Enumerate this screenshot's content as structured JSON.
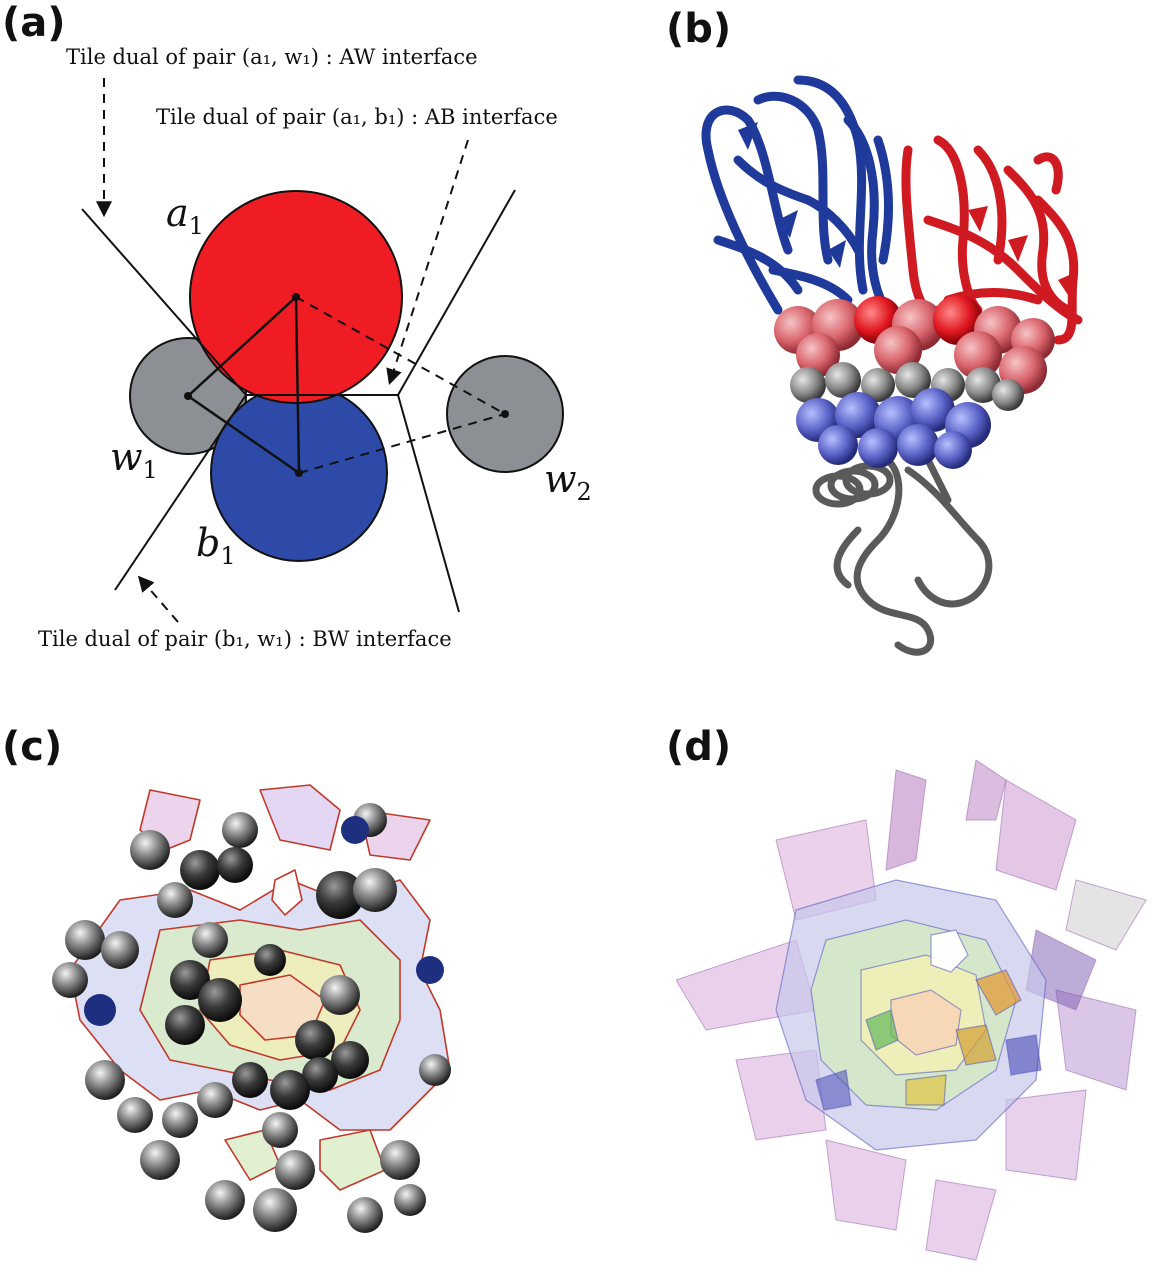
{
  "panels": {
    "a": {
      "label": "(a)",
      "annotations": {
        "aw": "Tile dual of pair (a₁, w₁) : AW interface",
        "ab": "Tile dual of pair (a₁, b₁) : AB interface",
        "bw": "Tile dual of pair (b₁, w₁) : BW interface"
      },
      "atoms": {
        "a1": {
          "base": "a",
          "sub": "1",
          "color": "#ef1c24"
        },
        "b1": {
          "base": "b",
          "sub": "1",
          "color": "#2e4aa8"
        },
        "w1": {
          "base": "w",
          "sub": "1",
          "color": "#8c8f93"
        },
        "w2": {
          "base": "w",
          "sub": "2",
          "color": "#8c8f93"
        }
      }
    },
    "b": {
      "label": "(b)"
    },
    "c": {
      "label": "(c)"
    },
    "d": {
      "label": "(d)"
    }
  }
}
